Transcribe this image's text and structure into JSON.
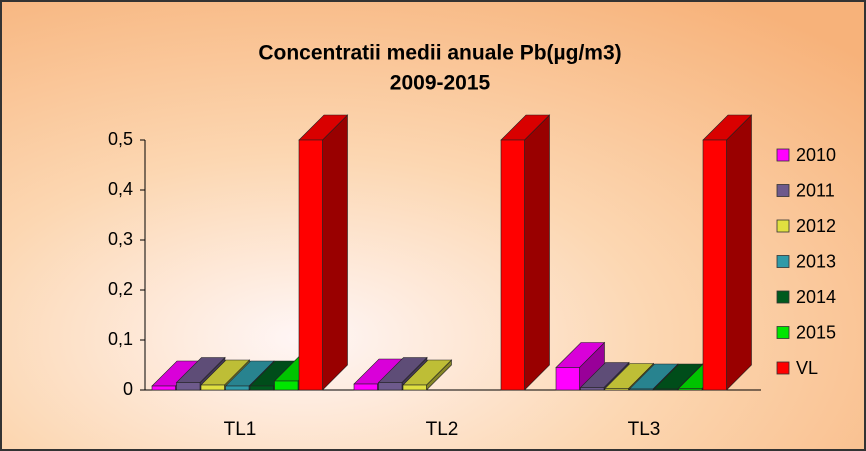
{
  "chart_data": {
    "type": "bar3d",
    "title": [
      "Concentratii medii anuale Pb(µg/m3)",
      "2009-2015"
    ],
    "categories": [
      "TL1",
      "TL2",
      "TL3"
    ],
    "series": [
      {
        "name": "2010",
        "color": "#ff00ff",
        "values": [
          0.008,
          0.012,
          0.045
        ]
      },
      {
        "name": "2011",
        "color": "#6e5a8c",
        "values": [
          0.015,
          0.015,
          0.005
        ]
      },
      {
        "name": "2012",
        "color": "#e0e040",
        "values": [
          0.01,
          0.01,
          0.003
        ]
      },
      {
        "name": "2013",
        "color": "#2f9aa8",
        "values": [
          0.008,
          null,
          0.002
        ]
      },
      {
        "name": "2014",
        "color": "#005a1e",
        "values": [
          0.008,
          null,
          0.002
        ]
      },
      {
        "name": "2015",
        "color": "#00e600",
        "values": [
          0.018,
          null,
          0.003
        ]
      },
      {
        "name": "VL",
        "color": "#ff0000",
        "values": [
          0.5,
          0.5,
          0.5
        ]
      }
    ],
    "ylim": [
      0,
      0.5
    ],
    "yticks": [
      0,
      {
        "value": 0.1,
        "label": "0,1"
      },
      {
        "value": 0.2,
        "label": "0,2"
      },
      {
        "value": 0.3,
        "label": "0,3"
      },
      {
        "value": 0.4,
        "label": "0,4"
      },
      {
        "value": 0.5,
        "label": "0,5"
      }
    ],
    "legend": "right"
  }
}
